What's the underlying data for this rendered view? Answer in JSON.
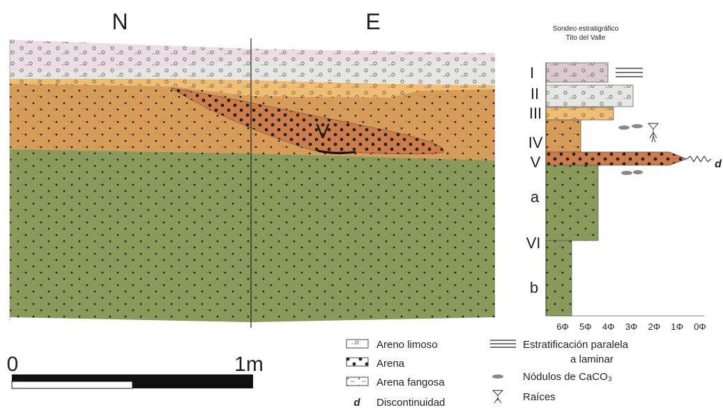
{
  "section": {
    "left_label": "N",
    "right_label": "E",
    "lens_label": "V"
  },
  "column": {
    "title": [
      "Sondeo estratigráfico",
      "Tito del Valle"
    ],
    "units": [
      "I",
      "II",
      "III",
      "IV",
      "V",
      "a",
      "VI",
      "b"
    ],
    "axis_labels": [
      "6Φ",
      "5Φ",
      "4Φ",
      "3Φ",
      "2Φ",
      "1Φ",
      "0Φ"
    ],
    "discontinuity": "d"
  },
  "scale": {
    "start": "0",
    "end": "1m"
  },
  "legend": {
    "left": [
      {
        "label": "Areno limoso"
      },
      {
        "label": "Arena"
      },
      {
        "label": "Arena fangosa"
      },
      {
        "symbol": "d",
        "label": "Discontinuidad"
      }
    ],
    "right": [
      {
        "label": [
          "Estratificación paralela",
          "a laminar"
        ]
      },
      {
        "label": "Nódulos de CaCO₃"
      },
      {
        "label": "Raíces"
      }
    ]
  }
}
